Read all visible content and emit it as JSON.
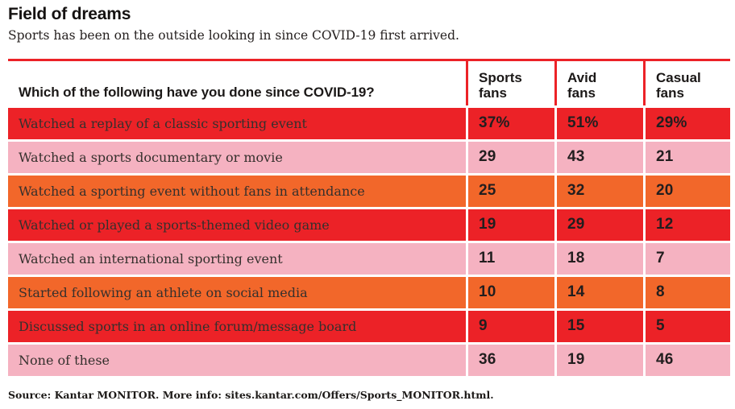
{
  "palette": {
    "red": "#EC2227",
    "pink": "#F5B2C1",
    "orange": "#F2672A",
    "dark_text": "#221E1F"
  },
  "header": {
    "title": "Field of dreams",
    "subtitle": "Sports has been on the outside looking in since COVID-19 first arrived."
  },
  "table": {
    "question": "Which of the following have you done since COVID-19?",
    "columns": [
      "Sports fans",
      "Avid fans",
      "Casual fans"
    ],
    "rows": [
      {
        "label": "Watched a replay of a classic sporting event",
        "color": "red",
        "values": [
          "37%",
          "51%",
          "29%"
        ]
      },
      {
        "label": "Watched a sports documentary or movie",
        "color": "pink",
        "values": [
          "29",
          "43",
          "21"
        ]
      },
      {
        "label": "Watched a sporting event without fans in attendance",
        "color": "orange",
        "values": [
          "25",
          "32",
          "20"
        ]
      },
      {
        "label": "Watched or played a sports-themed video game",
        "color": "red",
        "values": [
          "19",
          "29",
          "12"
        ]
      },
      {
        "label": "Watched an international sporting event",
        "color": "pink",
        "values": [
          "11",
          "18",
          "7"
        ]
      },
      {
        "label": "Started following an athlete on social media",
        "color": "orange",
        "values": [
          "10",
          "14",
          "8"
        ]
      },
      {
        "label": "Discussed sports in an online forum/message board",
        "color": "red",
        "values": [
          "9",
          "15",
          "5"
        ]
      },
      {
        "label": "None of these",
        "color": "pink",
        "values": [
          "36",
          "19",
          "46"
        ]
      }
    ]
  },
  "footer": {
    "source": "Source: Kantar MONITOR. More info: sites.kantar.com/Offers/Sports_MONITOR.html."
  },
  "chart_data": {
    "type": "table",
    "title": "Field of dreams",
    "subtitle": "Sports has been on the outside looking in since COVID-19 first arrived.",
    "question": "Which of the following have you done since COVID-19?",
    "categories": [
      "Watched a replay of a classic sporting event",
      "Watched a sports documentary or movie",
      "Watched a sporting event without fans in attendance",
      "Watched or played a sports-themed video game",
      "Watched an international sporting event",
      "Started following an athlete on social media",
      "Discussed sports in an online forum/message board",
      "None of these"
    ],
    "series": [
      {
        "name": "Sports fans",
        "values": [
          37,
          29,
          25,
          19,
          11,
          10,
          9,
          36
        ]
      },
      {
        "name": "Avid fans",
        "values": [
          51,
          43,
          32,
          29,
          18,
          14,
          15,
          19
        ]
      },
      {
        "name": "Casual fans",
        "values": [
          29,
          21,
          20,
          12,
          7,
          8,
          5,
          46
        ]
      }
    ],
    "units": "percent",
    "row_colors": [
      "red",
      "pink",
      "orange",
      "red",
      "pink",
      "orange",
      "red",
      "pink"
    ],
    "source": "Source: Kantar MONITOR. More info: sites.kantar.com/Offers/Sports_MONITOR.html."
  }
}
